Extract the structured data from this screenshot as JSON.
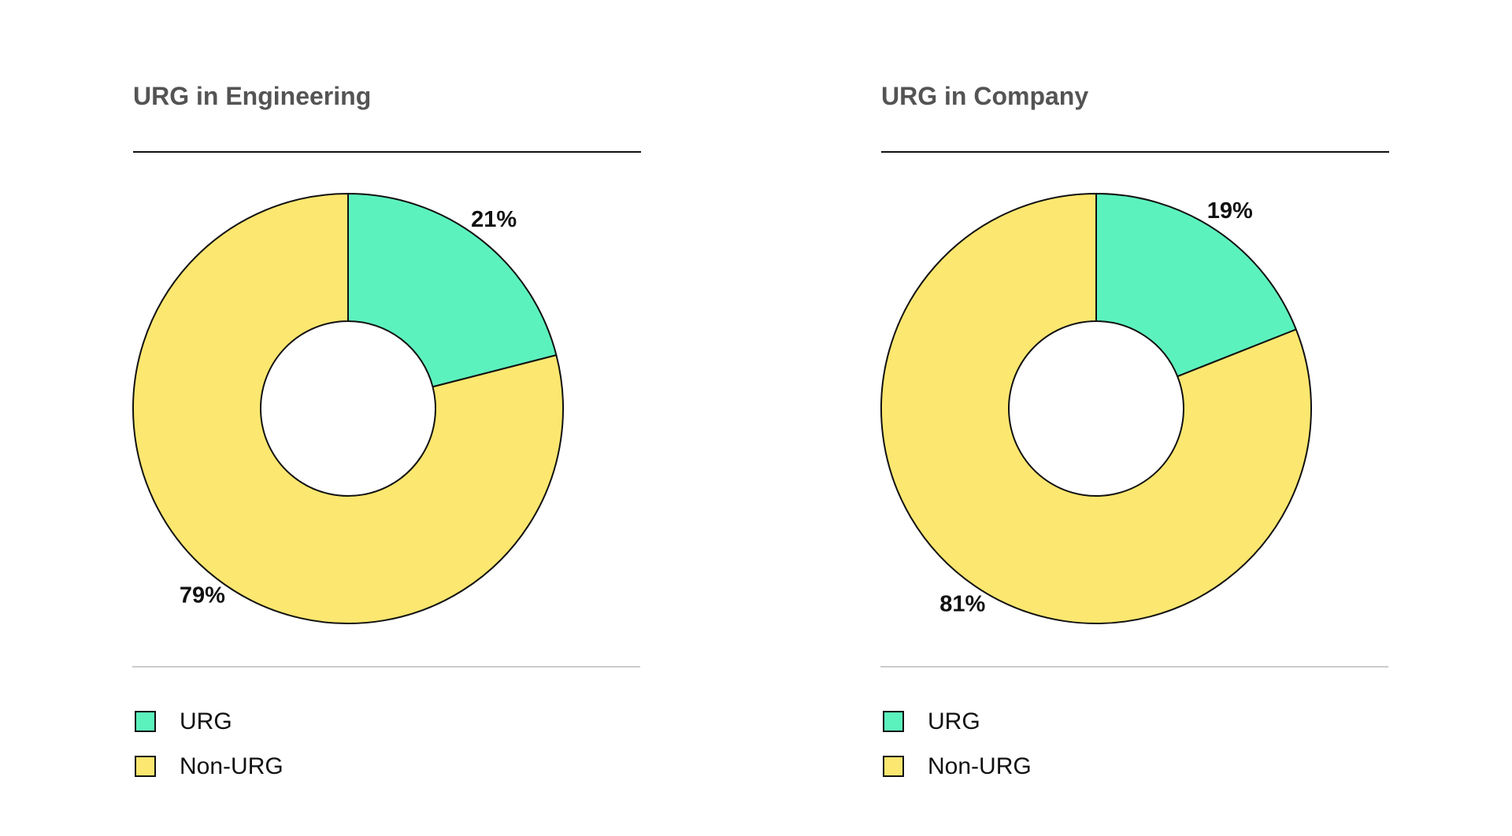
{
  "chart_data": [
    {
      "type": "pie",
      "title": "URG in Engineering",
      "categories": [
        "URG",
        "Non-URG"
      ],
      "values": [
        21,
        79
      ],
      "value_labels": [
        "21%",
        "79%"
      ],
      "colors": [
        "#5CF2BE",
        "#FCE770"
      ],
      "legend": "bottom-left",
      "donut": true
    },
    {
      "type": "pie",
      "title": "URG in Company",
      "categories": [
        "URG",
        "Non-URG"
      ],
      "values": [
        19,
        81
      ],
      "value_labels": [
        "19%",
        "81%"
      ],
      "colors": [
        "#5CF2BE",
        "#FCE770"
      ],
      "legend": "bottom-left",
      "donut": true
    }
  ]
}
